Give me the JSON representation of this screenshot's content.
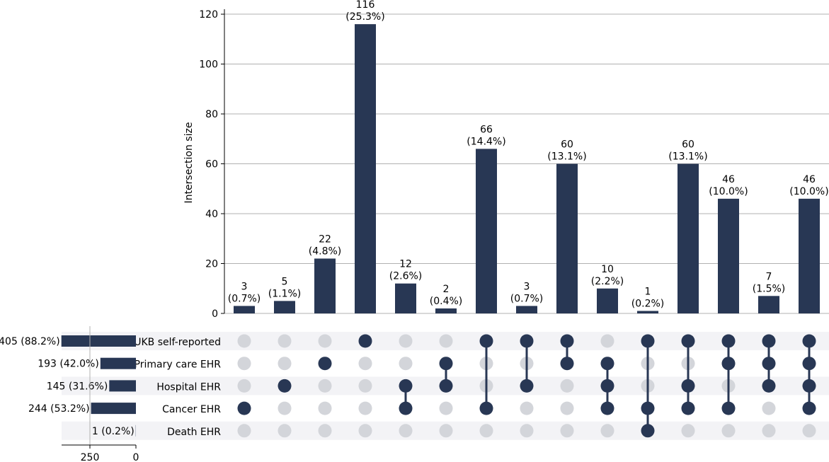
{
  "chart_data": {
    "type": "upset",
    "ylabel": "Intersection size",
    "ylim": [
      0,
      122
    ],
    "yticks": [
      0,
      20,
      40,
      60,
      80,
      100,
      120
    ],
    "grid": true,
    "bar_color": "#283754",
    "inactive_dot_color": "#d3d5da",
    "stripe_color": "#f3f3f6",
    "sets": [
      {
        "name": "UKB self-reported",
        "size": 405,
        "label": "405 (88.2%)"
      },
      {
        "name": "Primary care EHR",
        "size": 193,
        "label": "193 (42.0%)"
      },
      {
        "name": "Hospital EHR",
        "size": 145,
        "label": "145 (31.6%)"
      },
      {
        "name": "Cancer EHR",
        "size": 244,
        "label": "244 (53.2%)"
      },
      {
        "name": "Death EHR",
        "size": 1,
        "label": "1 (0.2%)"
      }
    ],
    "set_size_ticks": [
      250,
      0
    ],
    "intersections": [
      {
        "size": 3,
        "label_count": "3",
        "label_pct": "(0.7%)",
        "sets": [
          3
        ]
      },
      {
        "size": 5,
        "label_count": "5",
        "label_pct": "(1.1%)",
        "sets": [
          2
        ]
      },
      {
        "size": 22,
        "label_count": "22",
        "label_pct": "(4.8%)",
        "sets": [
          1
        ]
      },
      {
        "size": 116,
        "label_count": "116",
        "label_pct": "(25.3%)",
        "sets": [
          0
        ]
      },
      {
        "size": 12,
        "label_count": "12",
        "label_pct": "(2.6%)",
        "sets": [
          2,
          3
        ]
      },
      {
        "size": 2,
        "label_count": "2",
        "label_pct": "(0.4%)",
        "sets": [
          1,
          2
        ]
      },
      {
        "size": 66,
        "label_count": "66",
        "label_pct": "(14.4%)",
        "sets": [
          0,
          3
        ]
      },
      {
        "size": 3,
        "label_count": "3",
        "label_pct": "(0.7%)",
        "sets": [
          0,
          2
        ]
      },
      {
        "size": 60,
        "label_count": "60",
        "label_pct": "(13.1%)",
        "sets": [
          0,
          1
        ]
      },
      {
        "size": 10,
        "label_count": "10",
        "label_pct": "(2.2%)",
        "sets": [
          1,
          2,
          3
        ]
      },
      {
        "size": 1,
        "label_count": "1",
        "label_pct": "(0.2%)",
        "sets": [
          0,
          3,
          4
        ]
      },
      {
        "size": 60,
        "label_count": "60",
        "label_pct": "(13.1%)",
        "sets": [
          0,
          2,
          3
        ]
      },
      {
        "size": 46,
        "label_count": "46",
        "label_pct": "(10.0%)",
        "sets": [
          0,
          1,
          3
        ]
      },
      {
        "size": 7,
        "label_count": "7",
        "label_pct": "(1.5%)",
        "sets": [
          0,
          1,
          2
        ]
      },
      {
        "size": 46,
        "label_count": "46",
        "label_pct": "(10.0%)",
        "sets": [
          0,
          1,
          2,
          3
        ]
      }
    ]
  }
}
